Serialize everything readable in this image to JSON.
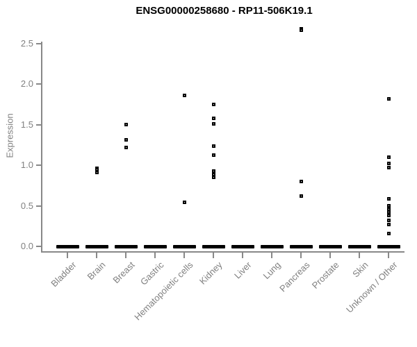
{
  "title": "ENSG00000258680 - RP11-506K19.1",
  "colors": {
    "marker": "#000000",
    "axis": "#888888",
    "tick_label": "#808080",
    "title": "#000000",
    "background": "#ffffff"
  },
  "chart_data": {
    "type": "scatter",
    "title": "ENSG00000258680 - RP11-506K19.1",
    "xlabel": "",
    "ylabel": "Expression",
    "ylim": [
      0.0,
      2.5
    ],
    "yticks": [
      0.0,
      0.5,
      1.0,
      1.5,
      2.0,
      2.5
    ],
    "grid": false,
    "legend": "none",
    "marker_style": "small open black square",
    "categories": [
      "Bladder",
      "Brain",
      "Breast",
      "Gastric",
      "Hematopoietic cells",
      "Kidney",
      "Liver",
      "Lung",
      "Pancreas",
      "Prostate",
      "Skin",
      "Unknown / Other"
    ],
    "series": [
      {
        "category": "Bladder",
        "nonzero_points": [],
        "zero_cluster": true
      },
      {
        "category": "Brain",
        "nonzero_points": [
          0.96,
          0.95,
          0.91
        ],
        "zero_cluster": true
      },
      {
        "category": "Breast",
        "nonzero_points": [
          1.5,
          1.31,
          1.22
        ],
        "zero_cluster": true
      },
      {
        "category": "Gastric",
        "nonzero_points": [],
        "zero_cluster": true
      },
      {
        "category": "Hematopoietic cells",
        "nonzero_points": [
          1.86,
          0.54
        ],
        "zero_cluster": true
      },
      {
        "category": "Kidney",
        "nonzero_points": [
          1.75,
          1.58,
          1.51,
          1.24,
          1.13,
          0.93,
          0.89,
          0.85
        ],
        "zero_cluster": true
      },
      {
        "category": "Liver",
        "nonzero_points": [],
        "zero_cluster": true
      },
      {
        "category": "Lung",
        "nonzero_points": [],
        "zero_cluster": true
      },
      {
        "category": "Pancreas",
        "nonzero_points": [
          2.68,
          2.67,
          0.8,
          0.62
        ],
        "zero_cluster": true
      },
      {
        "category": "Prostate",
        "nonzero_points": [],
        "zero_cluster": true
      },
      {
        "category": "Skin",
        "nonzero_points": [],
        "zero_cluster": true
      },
      {
        "category": "Unknown / Other",
        "nonzero_points": [
          1.82,
          1.1,
          1.02,
          0.97,
          0.59,
          0.5,
          0.46,
          0.42,
          0.38,
          0.32,
          0.27,
          0.16
        ],
        "zero_cluster": true
      }
    ]
  }
}
